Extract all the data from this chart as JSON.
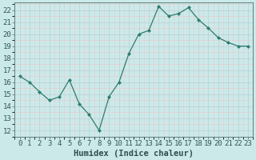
{
  "x": [
    0,
    1,
    2,
    3,
    4,
    5,
    6,
    7,
    8,
    9,
    10,
    11,
    12,
    13,
    14,
    15,
    16,
    17,
    18,
    19,
    20,
    21,
    22,
    23
  ],
  "y": [
    16.5,
    16.0,
    15.2,
    14.5,
    14.8,
    16.2,
    14.2,
    13.3,
    12.0,
    14.8,
    16.0,
    18.4,
    20.0,
    20.3,
    22.3,
    21.5,
    21.7,
    22.2,
    21.2,
    20.5,
    19.7,
    19.3,
    19.0,
    19.0
  ],
  "line_color": "#2e7d6e",
  "marker": "D",
  "marker_size": 2.0,
  "bg_color": "#cce9ea",
  "grid_color_major": "#b8d0d0",
  "grid_color_minor": "#e8c8c8",
  "xlabel": "Humidex (Indice chaleur)",
  "xlim": [
    -0.5,
    23.5
  ],
  "ylim": [
    11.5,
    22.6
  ],
  "yticks": [
    12,
    13,
    14,
    15,
    16,
    17,
    18,
    19,
    20,
    21,
    22
  ],
  "xticks": [
    0,
    1,
    2,
    3,
    4,
    5,
    6,
    7,
    8,
    9,
    10,
    11,
    12,
    13,
    14,
    15,
    16,
    17,
    18,
    19,
    20,
    21,
    22,
    23
  ],
  "xlabel_fontsize": 7.5,
  "tick_fontsize": 6.5
}
